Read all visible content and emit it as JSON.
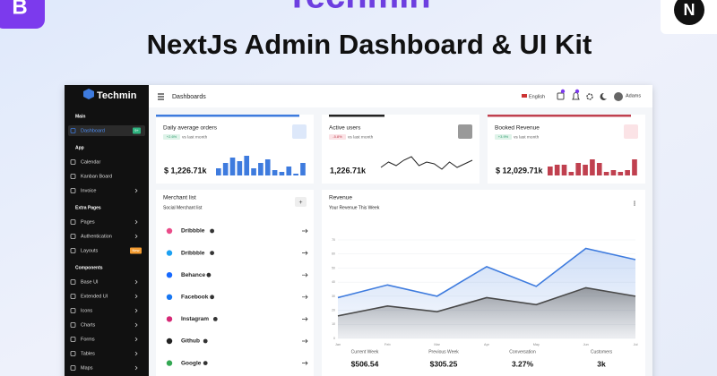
{
  "banner": {
    "brand": "Techmin",
    "title": "NextJs Admin Dashboard & UI Kit",
    "left_icon": "B",
    "right_icon": "N"
  },
  "sidebar": {
    "logo": "Techmin",
    "sections": [
      {
        "heading": "Main",
        "items": [
          {
            "label": "Dashboard",
            "badge": "9+",
            "active": true
          }
        ]
      },
      {
        "heading": "App",
        "items": [
          {
            "label": "Calendar"
          },
          {
            "label": "Kanban Board"
          },
          {
            "label": "Invoice",
            "expandable": true
          }
        ]
      },
      {
        "heading": "Extra Pages",
        "items": [
          {
            "label": "Pages",
            "expandable": true
          },
          {
            "label": "Authentication",
            "expandable": true
          },
          {
            "label": "Layouts",
            "badge": "New"
          }
        ]
      },
      {
        "heading": "Components",
        "items": [
          {
            "label": "Base UI",
            "expandable": true
          },
          {
            "label": "Extended UI",
            "expandable": true
          },
          {
            "label": "Icons",
            "expandable": true
          },
          {
            "label": "Charts",
            "expandable": true
          },
          {
            "label": "Forms",
            "expandable": true
          },
          {
            "label": "Tables",
            "expandable": true
          },
          {
            "label": "Maps",
            "expandable": true
          }
        ]
      }
    ]
  },
  "topbar": {
    "title": "Dashboards",
    "language": "English",
    "user": "Adams"
  },
  "stats": [
    {
      "title": "Daily average orders",
      "change": "+2.6%",
      "note": "vs last month",
      "value": "$ 1,226.71k",
      "color": "#3e7bde",
      "chart": "bar",
      "values": [
        8,
        14,
        20,
        16,
        22,
        8,
        14,
        18,
        6,
        4,
        10,
        2,
        14
      ]
    },
    {
      "title": "Active users",
      "change": "-5.8%",
      "note": "vs last month",
      "value": "1,226.71k",
      "color": "#222222",
      "chart": "line",
      "values": [
        4,
        10,
        6,
        12,
        16,
        6,
        10,
        8,
        2,
        10,
        4,
        8,
        12
      ]
    },
    {
      "title": "Booked Revenue",
      "change": "+3.9%",
      "note": "vs last month",
      "value": "$ 12,029.71k",
      "color": "#c0404f",
      "chart": "bar",
      "values": [
        10,
        12,
        12,
        4,
        14,
        12,
        18,
        14,
        4,
        6,
        4,
        6,
        18
      ]
    }
  ],
  "merchants": {
    "title": "Merchant list",
    "subtitle": "Social Merchant list",
    "items": [
      {
        "name": "Dribbble",
        "color": "#ea4c89"
      },
      {
        "name": "Dribbble",
        "color": "#1da1f2"
      },
      {
        "name": "Behance",
        "color": "#1769ff"
      },
      {
        "name": "Facebook",
        "color": "#1877f2"
      },
      {
        "name": "Instagram",
        "color": "#d62976"
      },
      {
        "name": "Github",
        "color": "#222222"
      },
      {
        "name": "Google",
        "color": "#34a853"
      }
    ]
  },
  "revenue": {
    "title": "Revenue",
    "subtitle": "Your Revenue This Week",
    "chart_data": {
      "type": "area",
      "categories": [
        "Jan",
        "Feb",
        "Mar",
        "Apr",
        "May",
        "Jun",
        "Jul"
      ],
      "ylim": [
        0,
        70
      ],
      "yticks": [
        0,
        10,
        20,
        30,
        40,
        50,
        60,
        70
      ],
      "series": [
        {
          "name": "Current Week",
          "color": "#3e7bde",
          "values": [
            29,
            38,
            30,
            51,
            37,
            64,
            56
          ]
        },
        {
          "name": "Previous Week",
          "color": "#4a4a4a",
          "values": [
            16,
            23,
            19,
            29,
            24,
            36,
            30
          ]
        }
      ]
    },
    "summary": [
      {
        "label": "Current Week",
        "value": "$506.54"
      },
      {
        "label": "Previous Week",
        "value": "$305.25"
      },
      {
        "label": "Conversation",
        "value": "3.27%"
      },
      {
        "label": "Customers",
        "value": "3k"
      }
    ]
  }
}
